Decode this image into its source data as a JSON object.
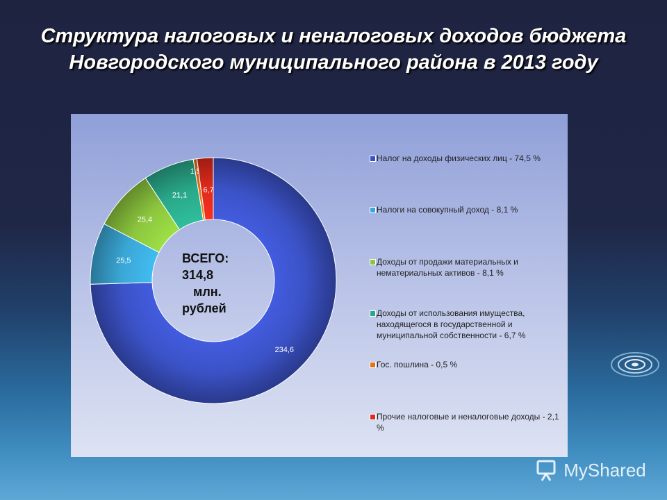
{
  "title": "Структура налоговых и неналоговых доходов бюджета Новгородского муниципального района в 2013 году",
  "center": {
    "line1": "ВСЕГО:",
    "line2": "314,8",
    "line3": "млн.",
    "line4": "рублей"
  },
  "watermark": "MyShared",
  "chart_data": {
    "type": "pie",
    "donut": true,
    "title": "Структура налоговых и неналоговых доходов бюджета Новгородского муниципального района в 2013 году",
    "legend_position": "right",
    "slices": [
      {
        "label": "Налог на доходы физических лиц - 74,5 %",
        "value": 234.6,
        "value_label": "234,6",
        "color": "#3b52c6"
      },
      {
        "label": "Налоги на совокупный доход - 8,1 %",
        "value": 25.5,
        "value_label": "25,5",
        "color": "#3aa7d6"
      },
      {
        "label": "Доходы от продажи материальных и нематериальных активов - 8,1 %",
        "value": 25.4,
        "value_label": "25,4",
        "color": "#8cc63e"
      },
      {
        "label": "Доходы от использования имущества, находящегося в государственной и муниципальной собственности - 6,7 %",
        "value": 21.1,
        "value_label": "21,1",
        "color": "#2aa98a"
      },
      {
        "label": "Гос. пошлина - 0,5 %",
        "value": 1.5,
        "value_label": "1,5",
        "color": "#e0731c"
      },
      {
        "label": "Прочие налоговые и неналоговые доходы - 2,1 %",
        "value": 6.7,
        "value_label": "6,7",
        "color": "#e02a1c"
      }
    ]
  }
}
